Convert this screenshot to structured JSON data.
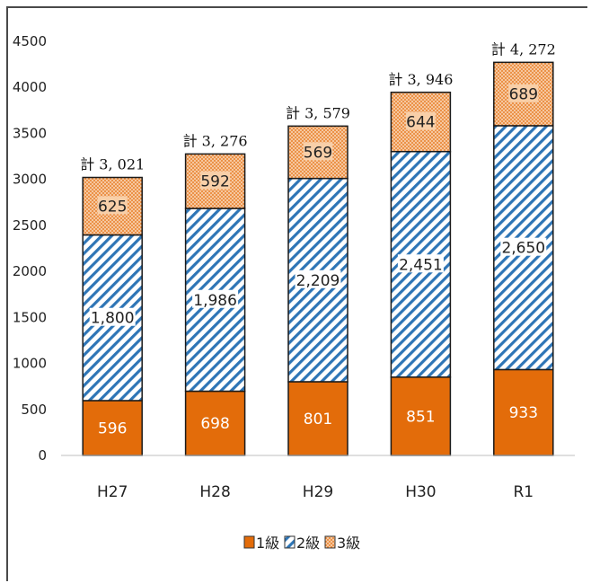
{
  "chart_data": {
    "type": "bar",
    "stacked": true,
    "categories": [
      "H27",
      "H28",
      "H29",
      "H30",
      "R1"
    ],
    "series": [
      {
        "name": "1級",
        "values": [
          596,
          698,
          801,
          851,
          933
        ],
        "value_labels": [
          "596",
          "698",
          "801",
          "851",
          "933"
        ],
        "color": "#e36c0a",
        "pattern": "solid"
      },
      {
        "name": "2級",
        "values": [
          1800,
          1986,
          2209,
          2451,
          2650
        ],
        "value_labels": [
          "1,800",
          "1,986",
          "2,209",
          "2,451",
          "2,650"
        ],
        "color": "#2e75b6",
        "pattern": "diagonal-hatch"
      },
      {
        "name": "3級",
        "values": [
          625,
          592,
          569,
          644,
          689
        ],
        "value_labels": [
          "625",
          "592",
          "569",
          "644",
          "689"
        ],
        "color": "#f4b183",
        "pattern": "dotted"
      }
    ],
    "totals": [
      "計 3, 021",
      "計 3, 276",
      "計 3, 579",
      "計 3, 946",
      "計 4, 272"
    ],
    "yticks": [
      "0",
      "500",
      "1000",
      "1500",
      "2000",
      "2500",
      "3000",
      "3500",
      "4000",
      "4500"
    ],
    "ylim": [
      0,
      4500
    ],
    "title": "",
    "xlabel": "",
    "ylabel": "",
    "grid": false,
    "legend_position": "bottom"
  }
}
